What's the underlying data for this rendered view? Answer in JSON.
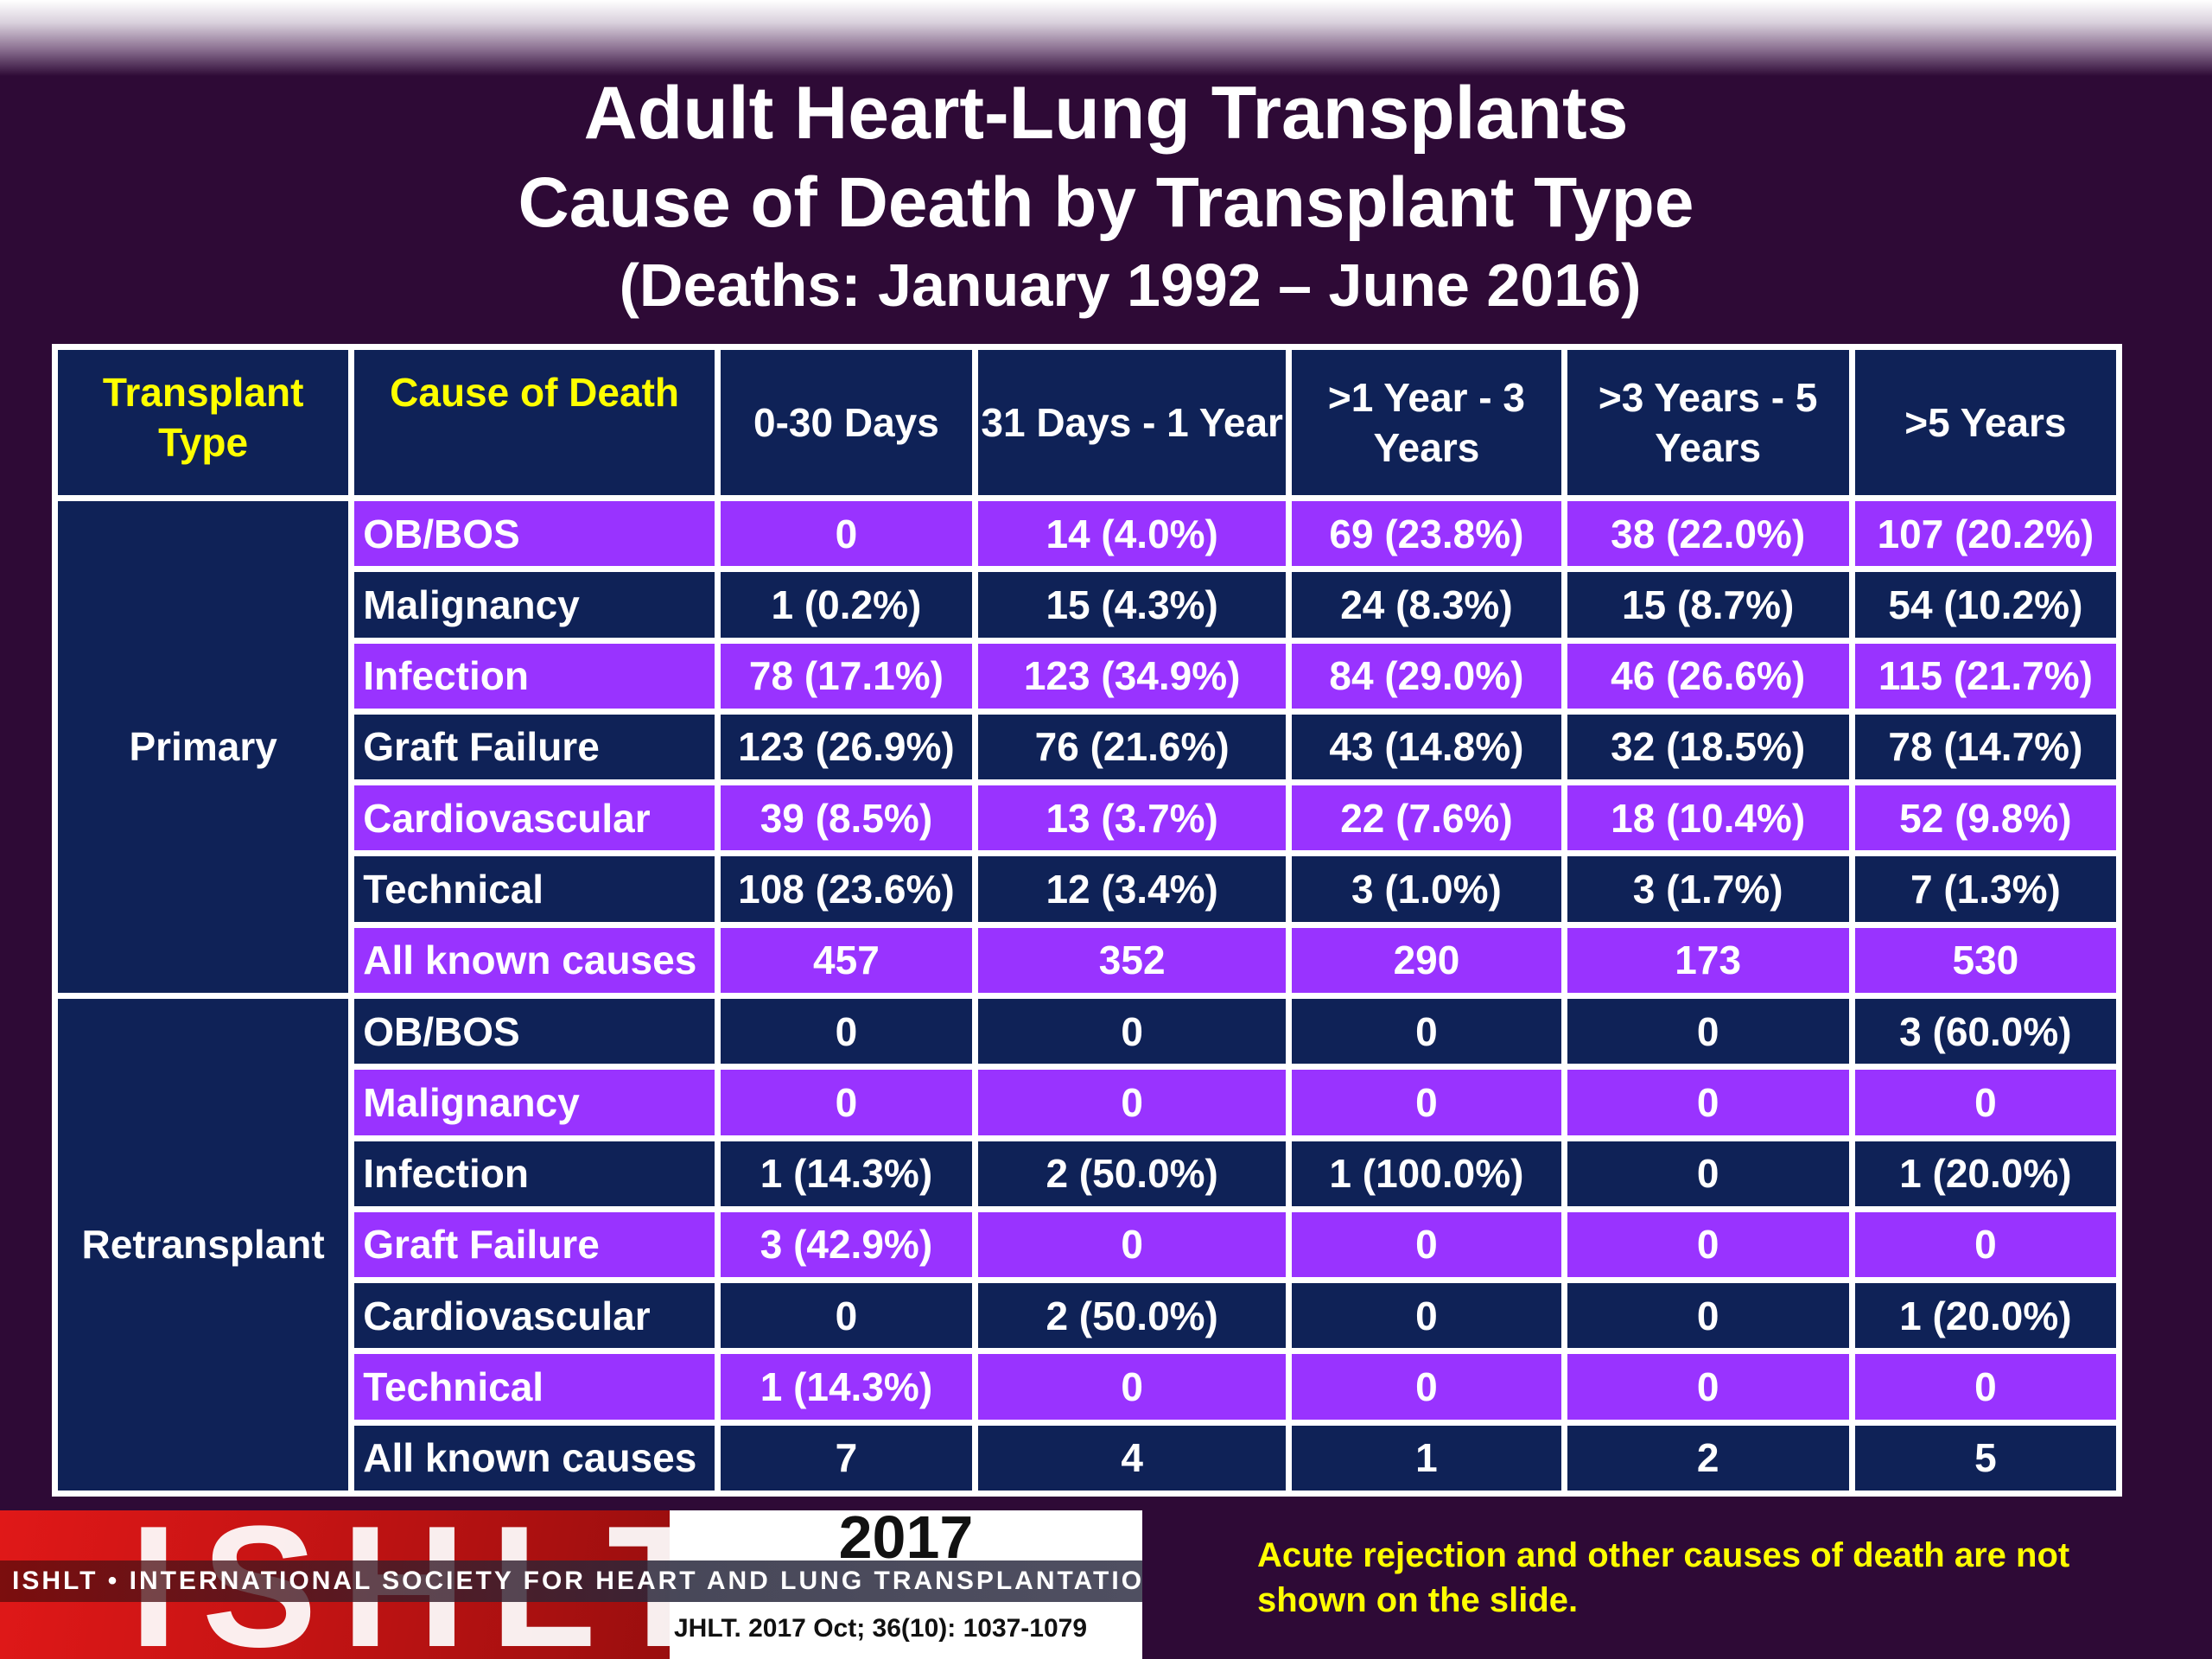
{
  "title": {
    "line1": "Adult Heart-Lung Transplants",
    "line2": "Cause of Death by Transplant Type",
    "line3": "(Deaths: January 1992 – June 2016)"
  },
  "headers": {
    "transplant_type": "Transplant Type",
    "cause": "Cause of Death",
    "periods": [
      "0-30 Days",
      "31 Days - 1 Year",
      ">1 Year - 3 Years",
      ">3 Years - 5 Years",
      ">5 Years"
    ]
  },
  "groups": [
    {
      "label": "Primary",
      "rows": [
        {
          "cause": "OB/BOS",
          "values": [
            "0",
            "14 (4.0%)",
            "69 (23.8%)",
            "38 (22.0%)",
            "107 (20.2%)"
          ]
        },
        {
          "cause": "Malignancy",
          "values": [
            "1 (0.2%)",
            "15 (4.3%)",
            "24 (8.3%)",
            "15 (8.7%)",
            "54 (10.2%)"
          ]
        },
        {
          "cause": "Infection",
          "values": [
            "78 (17.1%)",
            "123 (34.9%)",
            "84 (29.0%)",
            "46 (26.6%)",
            "115 (21.7%)"
          ]
        },
        {
          "cause": "Graft Failure",
          "values": [
            "123 (26.9%)",
            "76 (21.6%)",
            "43 (14.8%)",
            "32 (18.5%)",
            "78 (14.7%)"
          ]
        },
        {
          "cause": "Cardiovascular",
          "values": [
            "39 (8.5%)",
            "13 (3.7%)",
            "22 (7.6%)",
            "18 (10.4%)",
            "52 (9.8%)"
          ]
        },
        {
          "cause": "Technical",
          "values": [
            "108 (23.6%)",
            "12 (3.4%)",
            "3 (1.0%)",
            "3 (1.7%)",
            "7 (1.3%)"
          ]
        },
        {
          "cause": "All known causes",
          "values": [
            "457",
            "352",
            "290",
            "173",
            "530"
          ]
        }
      ]
    },
    {
      "label": "Retransplant",
      "rows": [
        {
          "cause": "OB/BOS",
          "values": [
            "0",
            "0",
            "0",
            "0",
            "3 (60.0%)"
          ]
        },
        {
          "cause": "Malignancy",
          "values": [
            "0",
            "0",
            "0",
            "0",
            "0"
          ]
        },
        {
          "cause": "Infection",
          "values": [
            "1 (14.3%)",
            "2 (50.0%)",
            "1 (100.0%)",
            "0",
            "1 (20.0%)"
          ]
        },
        {
          "cause": "Graft Failure",
          "values": [
            "3 (42.9%)",
            "0",
            "0",
            "0",
            "0"
          ]
        },
        {
          "cause": "Cardiovascular",
          "values": [
            "0",
            "2 (50.0%)",
            "0",
            "0",
            "1 (20.0%)"
          ]
        },
        {
          "cause": "Technical",
          "values": [
            "1 (14.3%)",
            "0",
            "0",
            "0",
            "0"
          ]
        },
        {
          "cause": "All known causes",
          "values": [
            "7",
            "4",
            "1",
            "2",
            "5"
          ]
        }
      ]
    }
  ],
  "logo": {
    "letters": "ISHLT",
    "society": "ISHLT • INTERNATIONAL SOCIETY FOR HEART AND LUNG TRANSPLANTATION",
    "year": "2017",
    "citation": "JHLT. 2017 Oct; 36(10): 1037-1079"
  },
  "footnote": "Acute rejection and other causes of death are not shown on the slide.",
  "colors": {
    "background": "#2e0a36",
    "cell_navy": "#0f2257",
    "cell_purple": "#9933ff",
    "header_text_yellow": "#ffff00"
  }
}
